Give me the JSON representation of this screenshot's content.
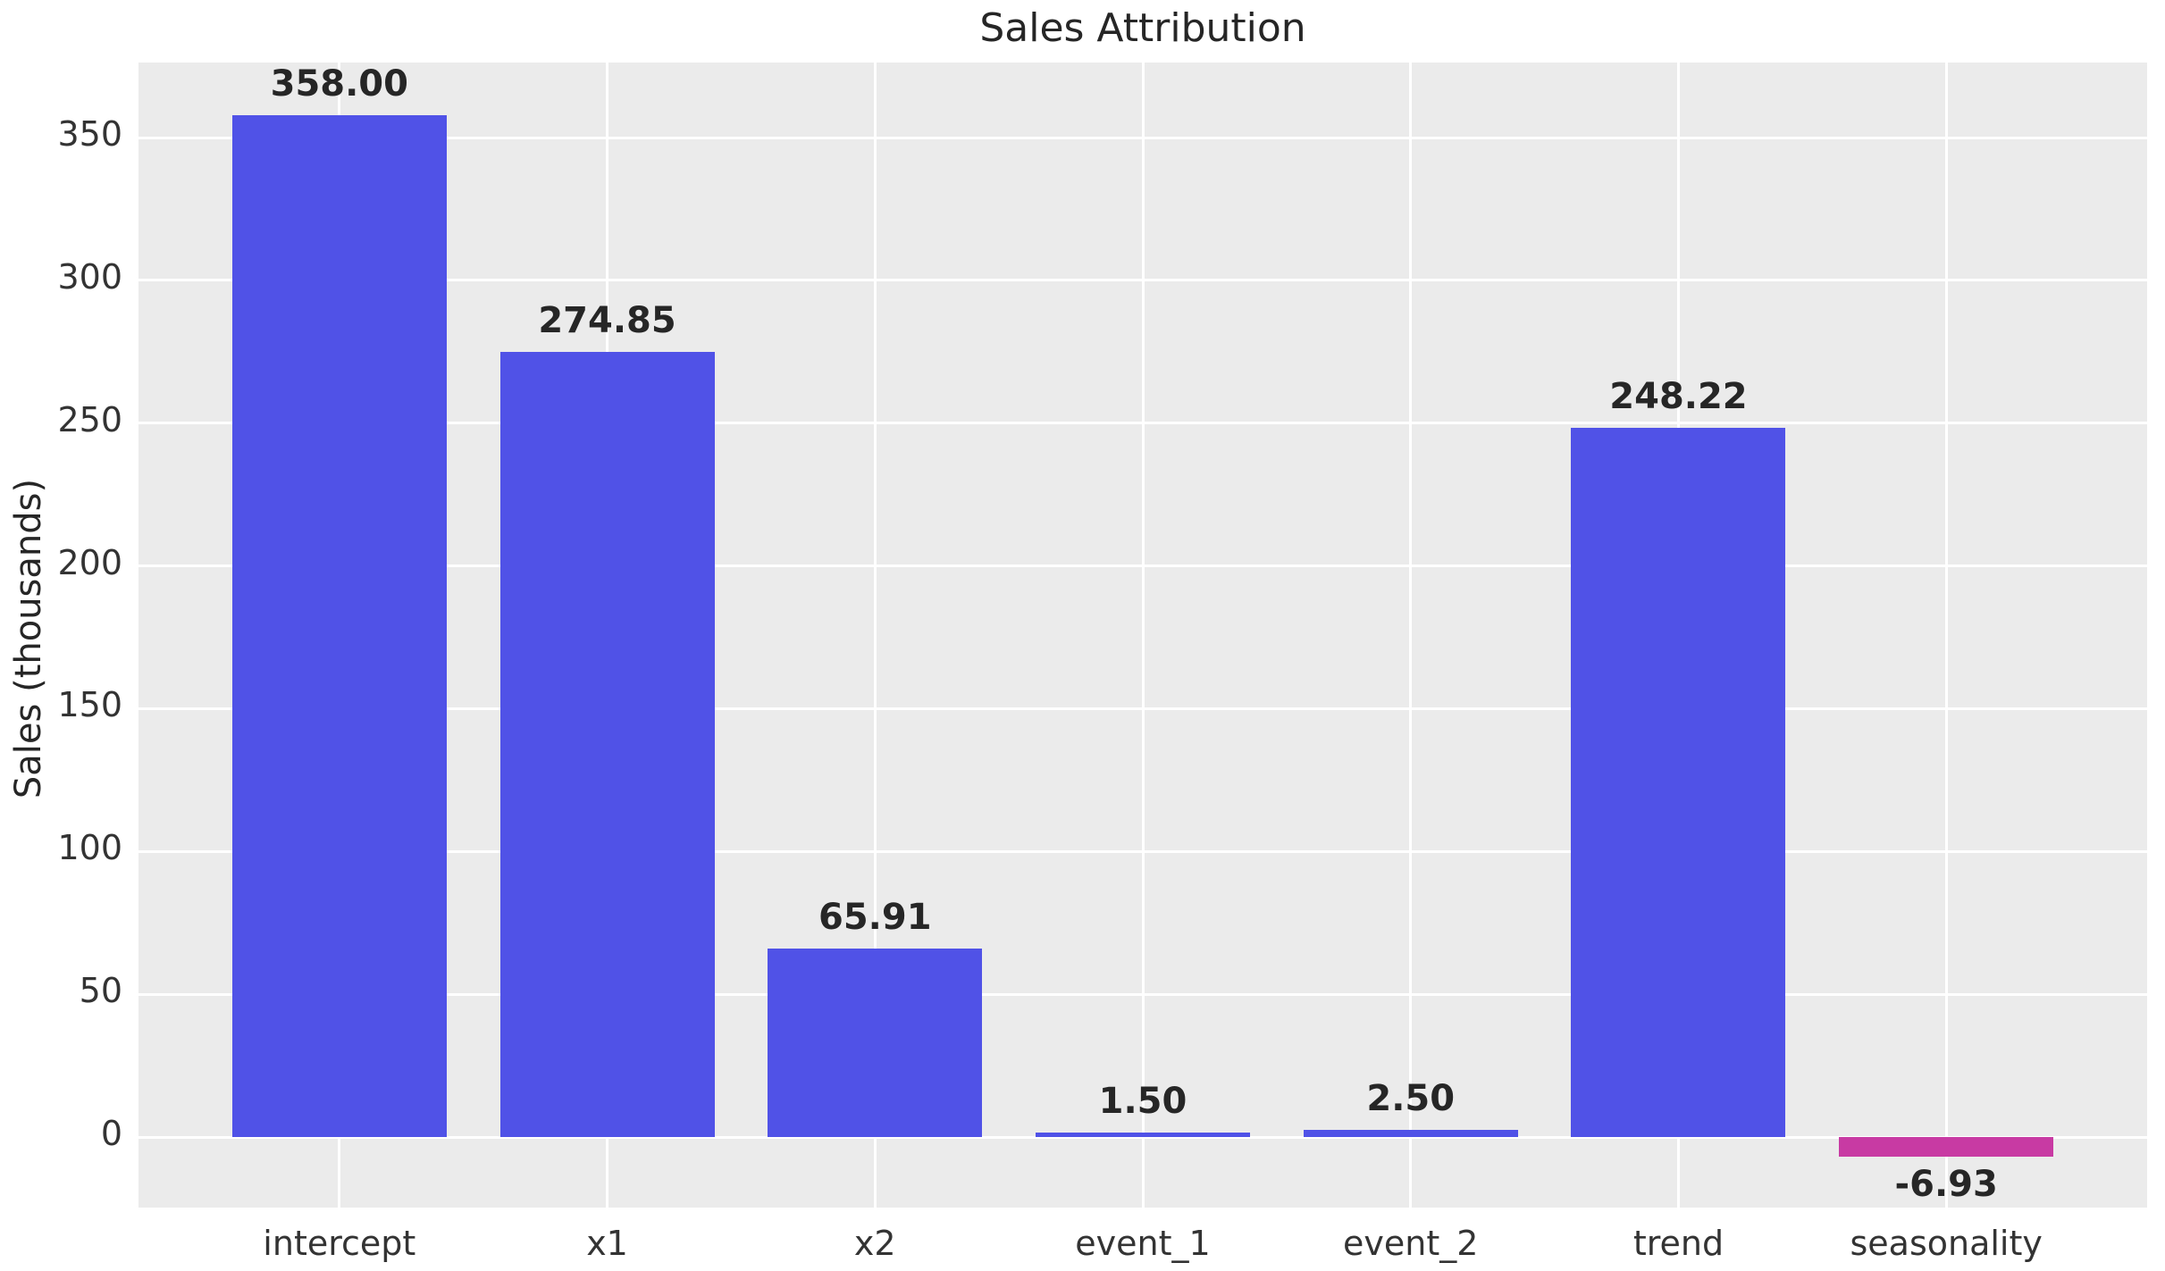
{
  "chart_data": {
    "type": "bar",
    "title": "Sales Attribution",
    "xlabel": "",
    "ylabel": "Sales (thousands)",
    "categories": [
      "intercept",
      "x1",
      "x2",
      "event_1",
      "event_2",
      "trend",
      "seasonality"
    ],
    "values": [
      358.0,
      274.85,
      65.91,
      1.5,
      2.5,
      248.22,
      -6.93
    ],
    "value_labels": [
      "358.00",
      "274.85",
      "65.91",
      "1.50",
      "2.50",
      "248.22",
      "-6.93"
    ],
    "bar_colors": [
      "#5052E7",
      "#5052E7",
      "#5052E7",
      "#5052E7",
      "#5052E7",
      "#5052E7",
      "#C83AA3"
    ],
    "yticks": [
      0,
      50,
      100,
      150,
      200,
      250,
      300,
      350
    ],
    "ylim": [
      -24.7,
      376.3
    ],
    "grid": true,
    "legend": "none",
    "colors": {
      "positive_bar": "#5052E7",
      "negative_bar": "#C83AA3",
      "plot_background": "#EBEBEB",
      "gridline": "#FFFFFF",
      "tick_text": "#333333",
      "label_text": "#262626"
    }
  }
}
